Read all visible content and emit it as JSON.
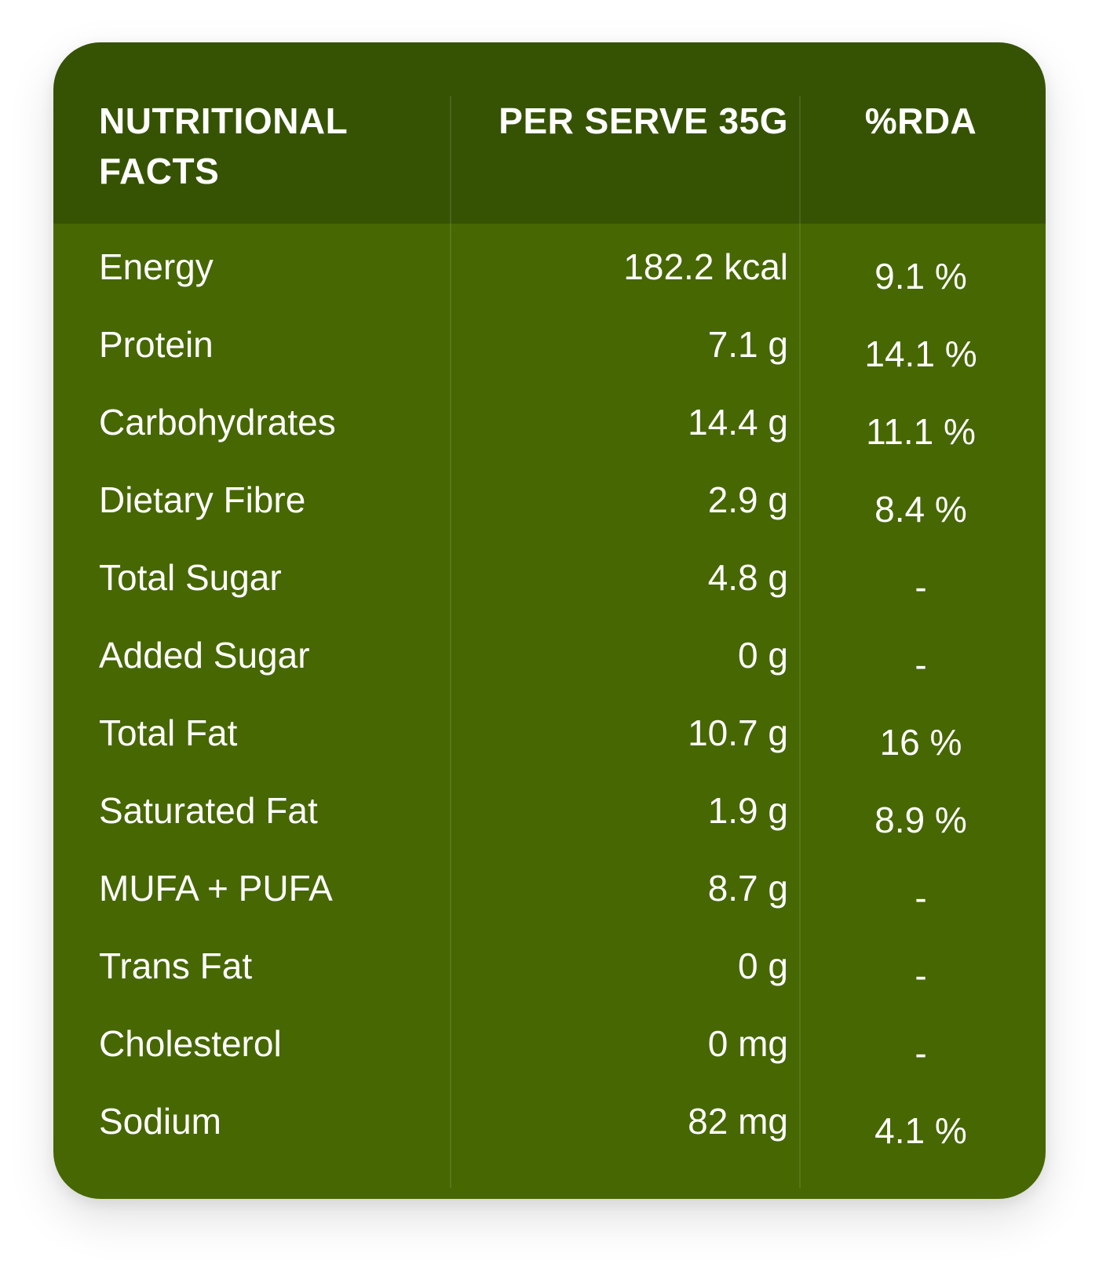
{
  "colors": {
    "header_bg": "#365304",
    "body_bg": "#466702",
    "text": "#ffffff"
  },
  "header": {
    "col_nutrient": "NUTRITIONAL FACTS",
    "col_per_serve": "PER SERVE 35G",
    "col_rda": "%RDA"
  },
  "rows": [
    {
      "nutrient": "Energy",
      "per_serve": "182.2 kcal",
      "rda": "9.1 %"
    },
    {
      "nutrient": "Protein",
      "per_serve": "7.1 g",
      "rda": "14.1 %"
    },
    {
      "nutrient": "Carbohydrates",
      "per_serve": "14.4 g",
      "rda": "11.1 %"
    },
    {
      "nutrient": "Dietary Fibre",
      "per_serve": "2.9 g",
      "rda": "8.4 %"
    },
    {
      "nutrient": "Total Sugar",
      "per_serve": "4.8 g",
      "rda": "-"
    },
    {
      "nutrient": "Added Sugar",
      "per_serve": "0 g",
      "rda": "-"
    },
    {
      "nutrient": "Total Fat",
      "per_serve": "10.7 g",
      "rda": "16 %"
    },
    {
      "nutrient": "Saturated Fat",
      "per_serve": "1.9 g",
      "rda": "8.9 %"
    },
    {
      "nutrient": "MUFA + PUFA",
      "per_serve": "8.7 g",
      "rda": "-"
    },
    {
      "nutrient": "Trans Fat",
      "per_serve": "0 g",
      "rda": "-"
    },
    {
      "nutrient": "Cholesterol",
      "per_serve": "0 mg",
      "rda": "-"
    },
    {
      "nutrient": "Sodium",
      "per_serve": "82 mg",
      "rda": "4.1 %"
    }
  ]
}
